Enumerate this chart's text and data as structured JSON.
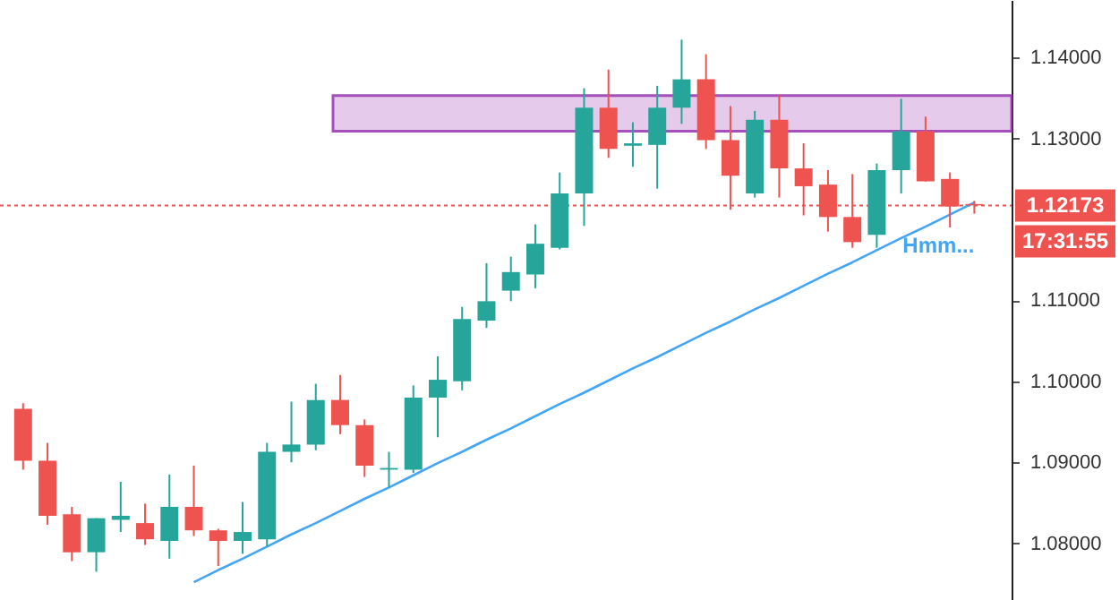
{
  "chart_data": {
    "type": "candlestick",
    "categories": [
      null,
      null,
      null,
      null,
      null,
      null,
      null,
      null,
      null,
      null,
      null,
      null,
      null,
      null,
      null,
      null,
      null,
      null,
      null,
      null,
      null,
      null,
      null,
      null,
      null,
      null,
      null,
      null,
      null,
      null,
      null,
      null,
      null,
      null,
      null,
      null,
      null,
      null,
      null,
      null
    ],
    "ohlc": [
      [
        1.0966,
        1.0973,
        1.0891,
        1.0902
      ],
      [
        1.0902,
        1.0924,
        1.0823,
        1.0834
      ],
      [
        1.0836,
        1.0845,
        1.0778,
        1.0789
      ],
      [
        1.0789,
        1.0831,
        1.0765,
        1.0831
      ],
      [
        1.0829,
        1.0876,
        1.0814,
        1.0834
      ],
      [
        1.0825,
        1.0849,
        1.0798,
        1.0805
      ],
      [
        1.0803,
        1.0885,
        1.0781,
        1.0845
      ],
      [
        1.0845,
        1.0896,
        1.0809,
        1.0816
      ],
      [
        1.0816,
        1.0818,
        1.0772,
        1.0803
      ],
      [
        1.0803,
        1.0851,
        1.0787,
        1.0814
      ],
      [
        1.0805,
        1.0924,
        1.0796,
        1.0913
      ],
      [
        1.0913,
        1.0975,
        1.09,
        1.0922
      ],
      [
        1.0922,
        1.0997,
        1.0915,
        1.0977
      ],
      [
        1.0977,
        1.1008,
        1.0935,
        1.0946
      ],
      [
        1.0946,
        1.0953,
        1.0882,
        1.0896
      ],
      [
        1.0891,
        1.0913,
        1.0869,
        1.0893
      ],
      [
        1.0891,
        1.0995,
        1.0887,
        1.098
      ],
      [
        1.098,
        1.1031,
        1.0931,
        1.1002
      ],
      [
        1.1,
        1.1092,
        1.0989,
        1.1077
      ],
      [
        1.1075,
        1.1146,
        1.1066,
        1.1099
      ],
      [
        1.1112,
        1.1154,
        1.1099,
        1.1135
      ],
      [
        1.1132,
        1.1194,
        1.1115,
        1.117
      ],
      [
        1.1165,
        1.1258,
        1.1163,
        1.1232
      ],
      [
        1.1232,
        1.1362,
        1.1192,
        1.1338
      ],
      [
        1.1338,
        1.1385,
        1.1276,
        1.1287
      ],
      [
        1.1291,
        1.132,
        1.1265,
        1.1294
      ],
      [
        1.1292,
        1.1365,
        1.1238,
        1.1338
      ],
      [
        1.1338,
        1.1422,
        1.1318,
        1.1373
      ],
      [
        1.1373,
        1.1404,
        1.1287,
        1.1298
      ],
      [
        1.1298,
        1.134,
        1.1212,
        1.1254
      ],
      [
        1.1232,
        1.1334,
        1.1227,
        1.1323
      ],
      [
        1.1323,
        1.1354,
        1.1227,
        1.1263
      ],
      [
        1.1263,
        1.1294,
        1.1205,
        1.1241
      ],
      [
        1.1243,
        1.1261,
        1.1185,
        1.1203
      ],
      [
        1.1203,
        1.1256,
        1.1165,
        1.1172
      ],
      [
        1.1181,
        1.1269,
        1.1165,
        1.1261
      ],
      [
        1.1261,
        1.1349,
        1.1232,
        1.1309
      ],
      [
        1.1309,
        1.1327,
        1.1247,
        1.1247
      ],
      [
        1.125,
        1.1258,
        1.119,
        1.1216
      ],
      [
        1.1219,
        1.1223,
        1.1207,
        1.12173
      ]
    ],
    "series": [
      {
        "type": "line",
        "color": "#42a5f5",
        "values": [
          null,
          null,
          null,
          null,
          null,
          null,
          null,
          1.0752,
          1.0767,
          1.0781,
          1.0796,
          1.0811,
          1.0825,
          1.084,
          1.0855,
          1.0869,
          1.0884,
          1.0899,
          1.0913,
          1.0928,
          1.0942,
          1.0957,
          1.0972,
          1.0986,
          1.1001,
          1.1016,
          1.103,
          1.1045,
          1.106,
          1.1074,
          1.1089,
          1.1103,
          1.1118,
          1.1133,
          1.1147,
          1.1162,
          1.1177,
          1.1191,
          1.1206,
          1.1221
        ]
      }
    ],
    "ylim": [
      1.073,
      1.1471
    ],
    "yticks": [
      {
        "value": 1.08,
        "label": "1.08000"
      },
      {
        "value": 1.09,
        "label": "1.09000"
      },
      {
        "value": 1.1,
        "label": "1.10000"
      },
      {
        "value": 1.11,
        "label": "1.11000"
      },
      {
        "value": 1.13,
        "label": "1.13000"
      },
      {
        "value": 1.14,
        "label": "1.14000"
      }
    ],
    "ref_lines": [
      {
        "axis": "y",
        "value": 1.12173,
        "label": "1.12173",
        "color": "#ef5350",
        "line_style": "dotted"
      }
    ],
    "bands": [
      {
        "axis": "y",
        "from": 1.1309,
        "to": 1.1353,
        "color": "#e1bee7"
      }
    ],
    "annotations": [
      "17:31:55",
      "Hmm..."
    ],
    "grid": false
  }
}
